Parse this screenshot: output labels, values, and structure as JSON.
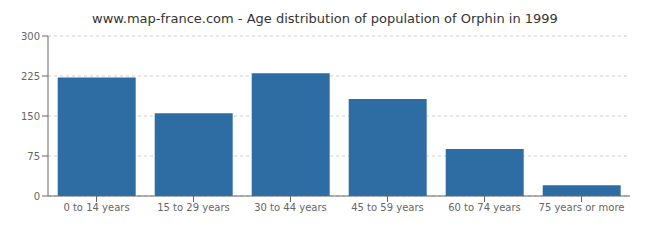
{
  "chart_data": {
    "type": "bar",
    "title": "www.map-france.com - Age distribution of population of Orphin in 1999",
    "categories": [
      "0 to 14 years",
      "15 to 29 years",
      "30 to 44 years",
      "45 to 59 years",
      "60 to 74 years",
      "75 years or more"
    ],
    "values": [
      222,
      155,
      230,
      182,
      88,
      20
    ],
    "color": "#2e6da4",
    "ylim": [
      0,
      300
    ],
    "yticks": [
      0,
      75,
      150,
      225,
      300
    ],
    "grid": true
  }
}
